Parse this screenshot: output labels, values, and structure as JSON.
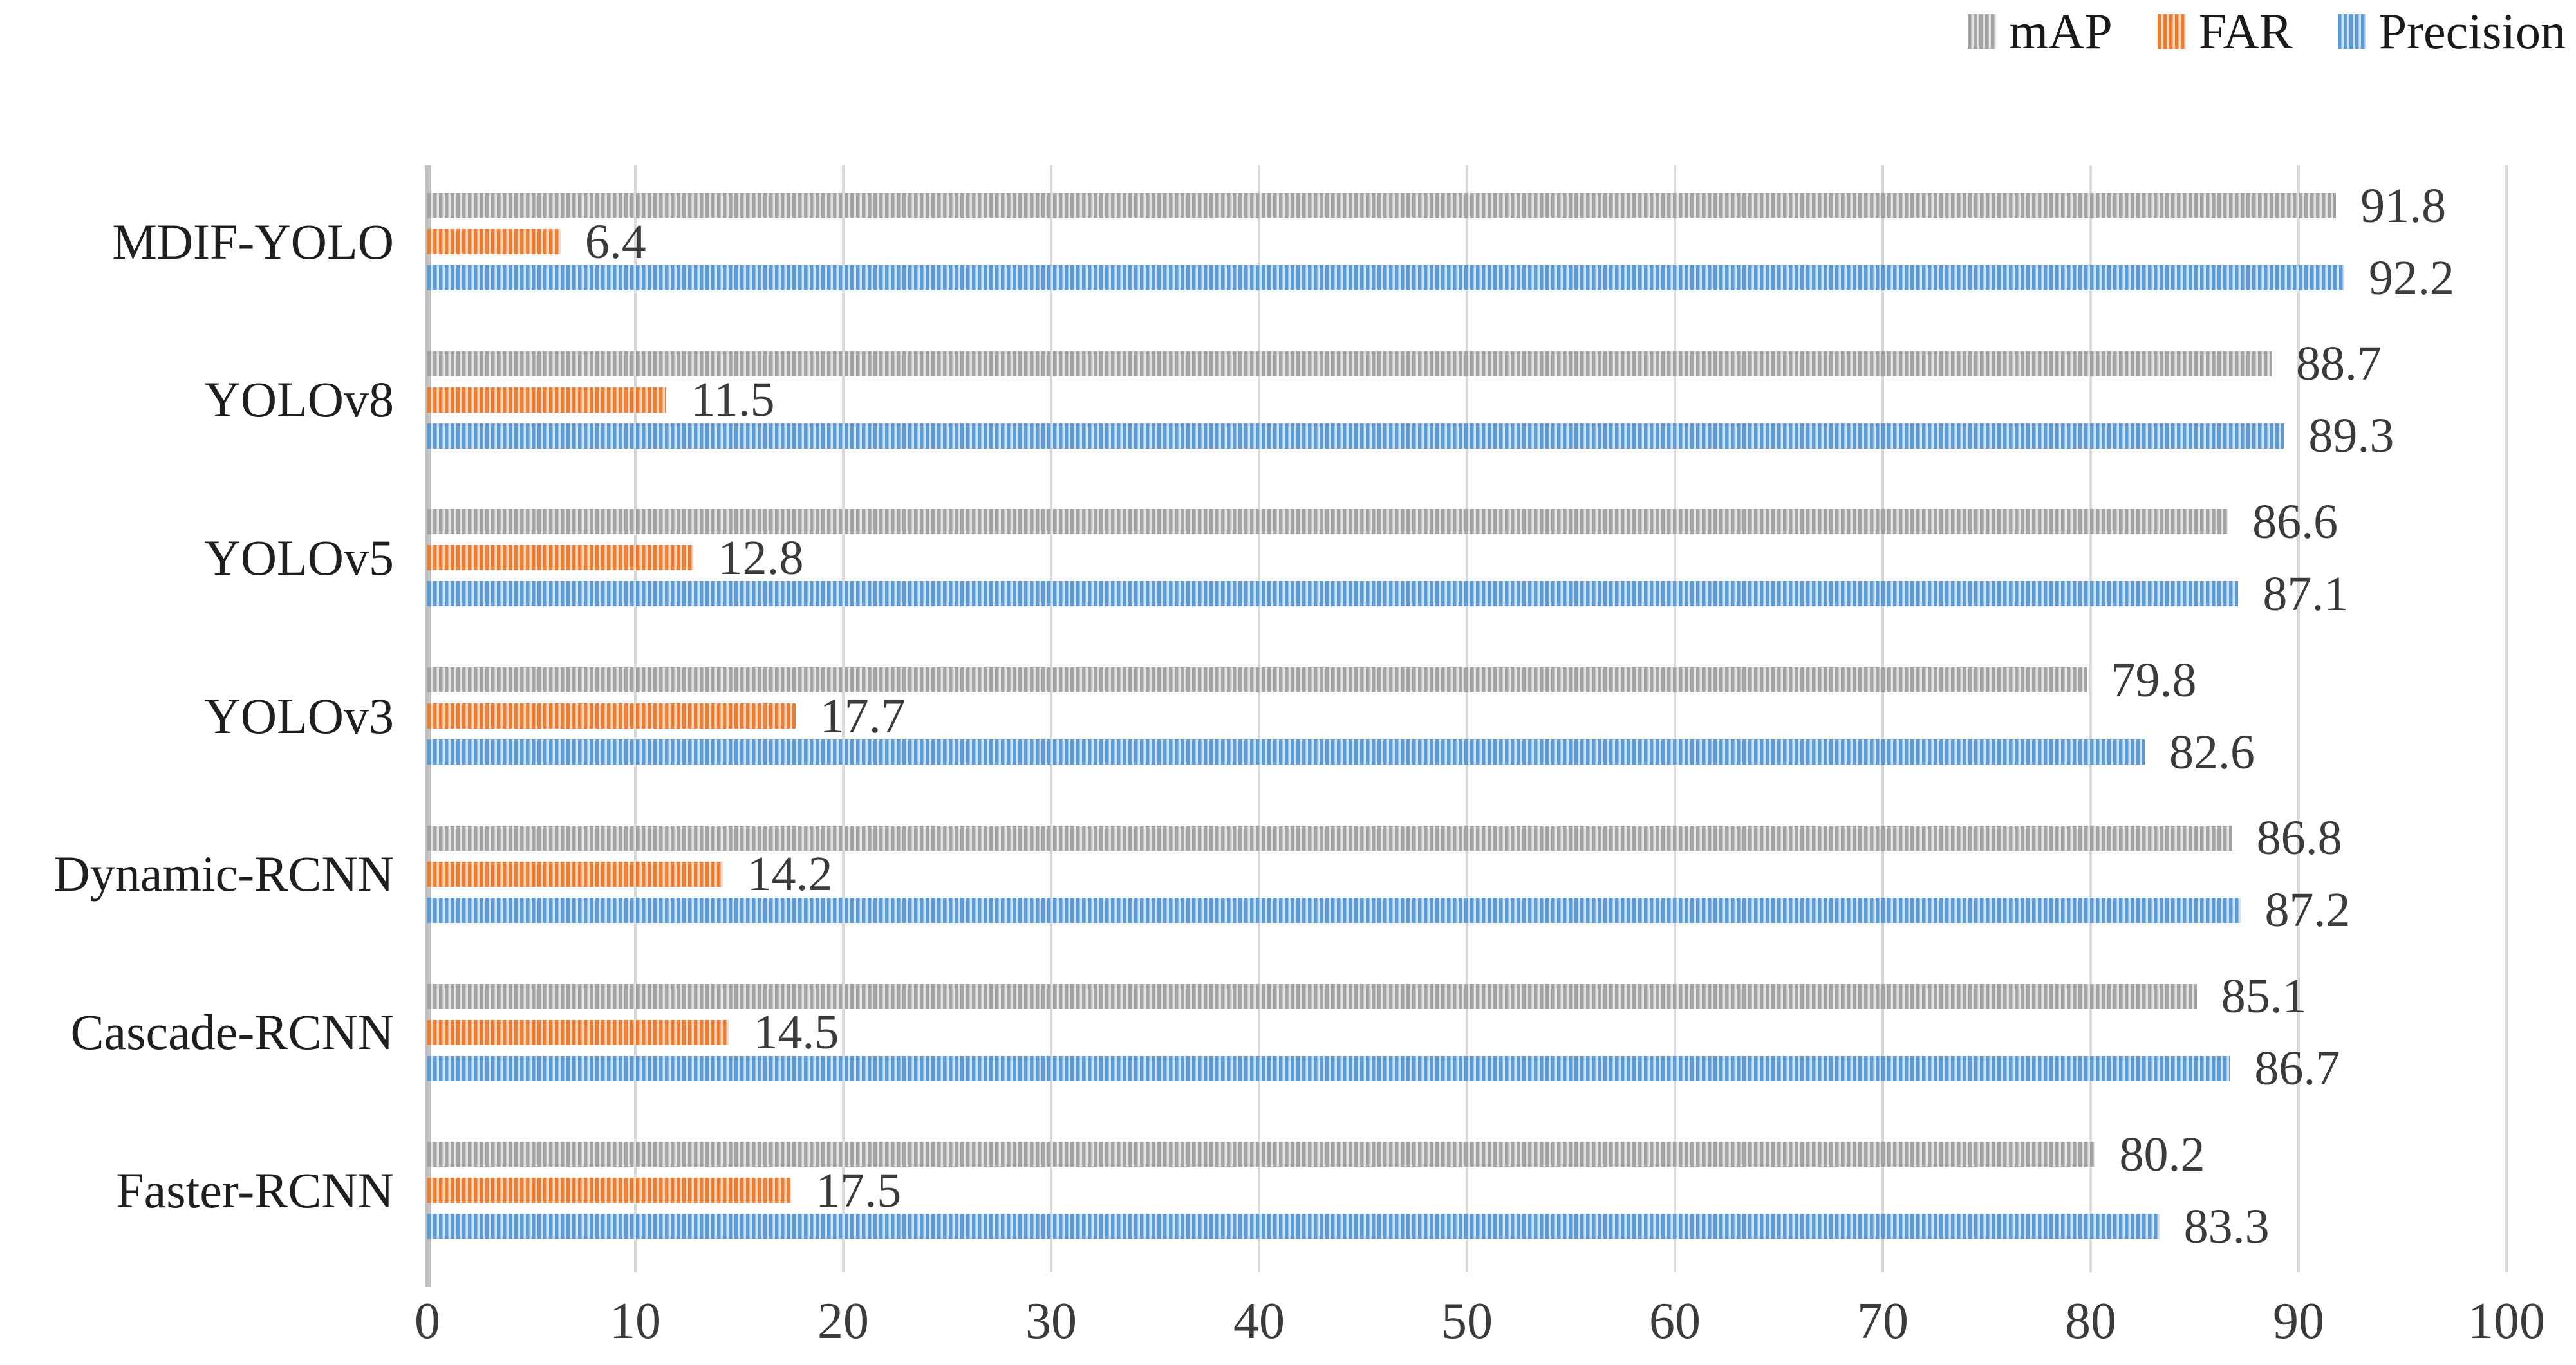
{
  "page": {
    "background": "#ffffff"
  },
  "chart_data": {
    "type": "bar",
    "orientation": "horizontal",
    "title": "",
    "xlabel": "",
    "ylabel": "",
    "categories": [
      "MDIF-YOLO",
      "YOLOv8",
      "YOLOv5",
      "YOLOv3",
      "Dynamic-RCNN",
      "Cascade-RCNN",
      "Faster-RCNN"
    ],
    "series": [
      {
        "name": "mAP",
        "color": "#a3a3a3",
        "light_color": "#e2e2e2",
        "pattern": "vertical-stripes",
        "values": [
          91.8,
          88.7,
          86.6,
          79.8,
          86.8,
          85.1,
          80.2
        ]
      },
      {
        "name": "FAR",
        "color": "#ed7d31",
        "light_color": "#fad9c0",
        "pattern": "vertical-stripes",
        "values": [
          6.4,
          11.5,
          12.8,
          17.7,
          14.2,
          14.5,
          17.5
        ]
      },
      {
        "name": "Precision",
        "color": "#5b9bd5",
        "light_color": "#cfe1f4",
        "pattern": "vertical-stripes",
        "values": [
          92.2,
          89.3,
          87.1,
          82.6,
          87.2,
          86.7,
          83.3
        ]
      }
    ],
    "value_labels": true,
    "xlim": [
      0,
      100
    ],
    "xticks": [
      0,
      10,
      20,
      30,
      40,
      50,
      60,
      70,
      80,
      90,
      100
    ],
    "grid": true,
    "legend_position": "top-right",
    "colors": {
      "gridline": "#dadada",
      "axis_line": "#c0c0c0",
      "value_text": "#3b3b3b",
      "category_text": "#1f1f1f",
      "legend_text": "#1a1a1a",
      "background": "#ffffff"
    }
  }
}
